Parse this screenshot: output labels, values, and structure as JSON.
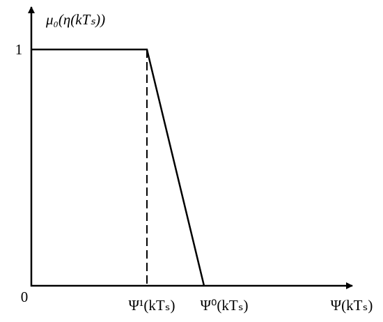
{
  "y_axis_label": "μ₀(η(kTₛ))",
  "y_ticks": [
    "1",
    "0"
  ],
  "x_labels": [
    "Ψ¹(kTₛ)",
    "Ψ⁰(kTₛ)",
    "Ψ(kTₛ)"
  ]
}
